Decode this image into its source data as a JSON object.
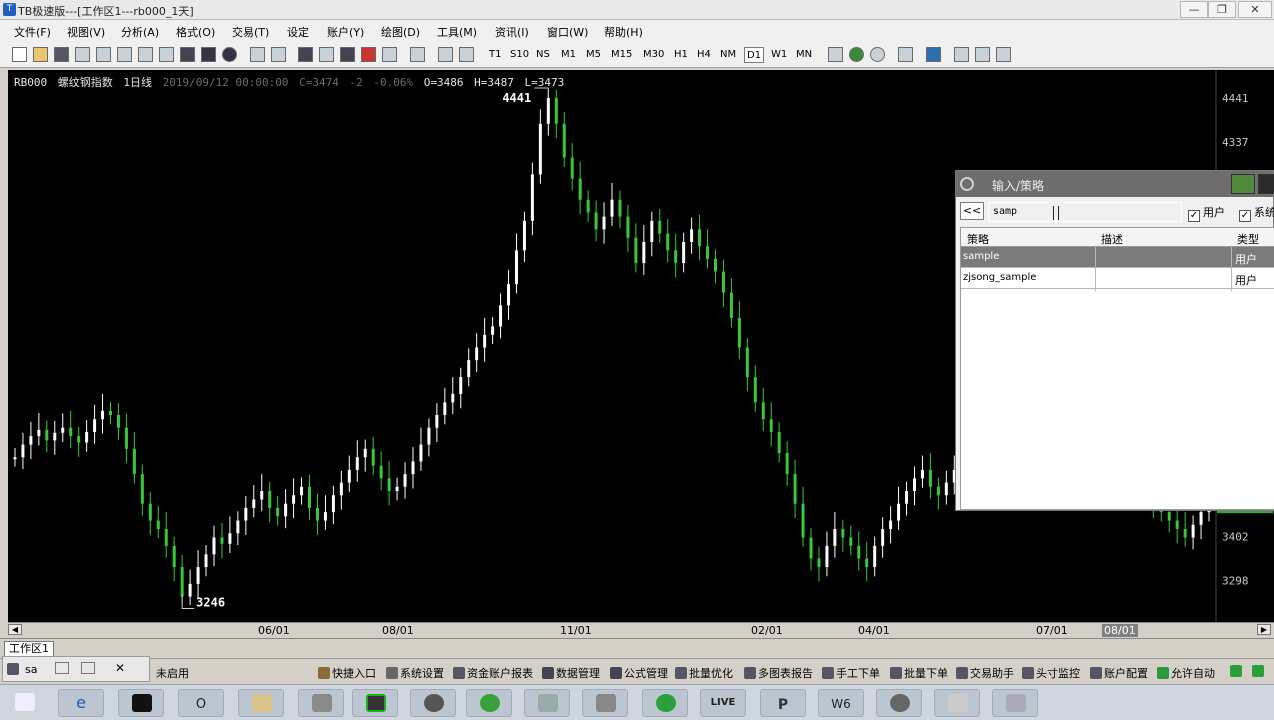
{
  "window": {
    "title": "TB极速版---[工作区1---rb000_1天]",
    "controls": [
      "—",
      "❐",
      "✕"
    ]
  },
  "menu": [
    "文件(F)",
    "视图(V)",
    "分析(A)",
    "格式(O)",
    "交易(T)",
    "设定",
    "账户(Y)",
    "绘图(D)",
    "工具(M)",
    "资讯(I)",
    "窗口(W)",
    "帮助(H)"
  ],
  "periods": [
    "T1",
    "S10",
    "NS",
    "M1",
    "M5",
    "M15",
    "M30",
    "H1",
    "H4",
    "NM",
    "D1",
    "W1",
    "MN"
  ],
  "selected_period": "D1",
  "chart_info": {
    "symbol": "RB000",
    "name": "螺纹钢指数",
    "period": "1日线",
    "datetime": "2019/09/12 00:00:00",
    "close": "C=3474",
    "change": "-2",
    "pct": "-0.06%",
    "open": "O=3486",
    "high": "H=3487",
    "low": "L=3473"
  },
  "chart_data": {
    "type": "candlestick",
    "y_ticks": [
      4441,
      4337,
      3402,
      3298
    ],
    "ylim": [
      3240,
      4460
    ],
    "x_ticks": [
      "06/01",
      "08/01",
      "11/01",
      "02/01",
      "04/01",
      "07/01",
      "08/01"
    ],
    "annotations": [
      {
        "text": "4441",
        "value": 4441,
        "kind": "high"
      },
      {
        "text": "3246",
        "value": 3246,
        "kind": "low"
      }
    ],
    "last_price": "3474",
    "series_close": [
      3590,
      3620,
      3640,
      3655,
      3630,
      3648,
      3660,
      3640,
      3625,
      3650,
      3680,
      3700,
      3690,
      3660,
      3610,
      3550,
      3480,
      3440,
      3420,
      3380,
      3330,
      3260,
      3290,
      3330,
      3360,
      3400,
      3385,
      3410,
      3440,
      3470,
      3490,
      3510,
      3470,
      3450,
      3480,
      3500,
      3520,
      3470,
      3440,
      3460,
      3500,
      3530,
      3560,
      3590,
      3610,
      3570,
      3540,
      3510,
      3520,
      3550,
      3580,
      3620,
      3660,
      3690,
      3720,
      3740,
      3780,
      3820,
      3850,
      3880,
      3900,
      3950,
      4000,
      4080,
      4150,
      4260,
      4380,
      4441,
      4380,
      4300,
      4250,
      4200,
      4170,
      4130,
      4160,
      4200,
      4160,
      4110,
      4050,
      4100,
      4150,
      4120,
      4080,
      4050,
      4100,
      4130,
      4090,
      4060,
      4030,
      3980,
      3920,
      3850,
      3780,
      3720,
      3680,
      3650,
      3600,
      3550,
      3480,
      3400,
      3350,
      3330,
      3380,
      3420,
      3400,
      3380,
      3350,
      3330,
      3380,
      3420,
      3440,
      3480,
      3510,
      3540,
      3560,
      3520,
      3500,
      3530,
      3560,
      3590,
      3620,
      3580,
      3560,
      3540,
      3580,
      3610,
      3600,
      3590,
      3570,
      3540,
      3560,
      3600,
      3640,
      3680,
      3710,
      3700,
      3660,
      3620,
      3600,
      3580,
      3560,
      3530,
      3500,
      3480,
      3460,
      3440,
      3420,
      3400,
      3430,
      3460,
      3474
    ]
  },
  "dialog": {
    "title": "输入/策略",
    "back": "<<",
    "search_value": "samp",
    "check_user": "用户",
    "check_system": "系统",
    "check_mark": "✓",
    "headers": [
      "策略",
      "描述",
      "类型"
    ],
    "rows": [
      {
        "name": "sample",
        "desc": "",
        "type": "用户"
      },
      {
        "name": "zjsong_sample",
        "desc": "",
        "type": "用户"
      }
    ]
  },
  "scroll": {
    "left": "◀",
    "right": "▶"
  },
  "workspace_tab": "工作区1",
  "status": {
    "state": "未启用",
    "items": [
      "快捷入口",
      "系统设置",
      "资金账户报表",
      "数据管理",
      "公式管理",
      "批量优化",
      "多图表报告",
      "手工下单",
      "批量下单",
      "交易助手",
      "头寸监控",
      "账户配置",
      "允许自动"
    ]
  },
  "mini_panel": {
    "label": "sa"
  },
  "taskbar": {
    "items": [
      "",
      "e",
      "C:\\",
      "O",
      "",
      "",
      "",
      "",
      "",
      "",
      "LIVE",
      "P",
      "W6",
      "",
      ""
    ]
  }
}
